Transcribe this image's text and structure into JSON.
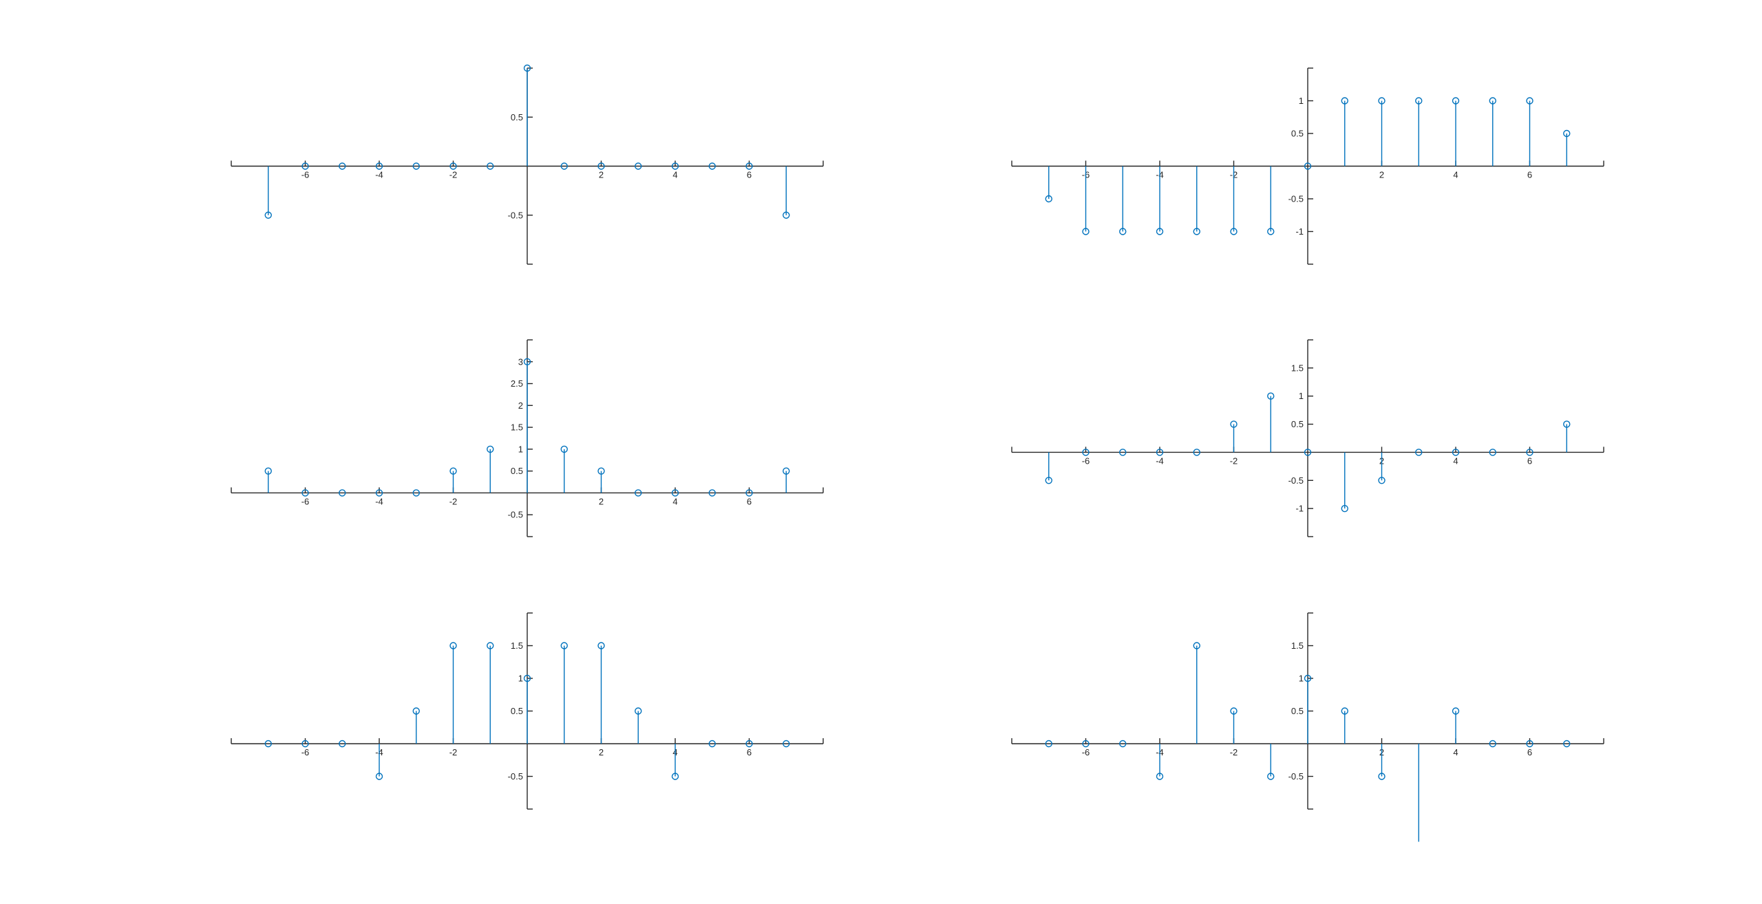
{
  "colors": {
    "stem": "#0072BD",
    "axis": "#262626",
    "background": "#ffffff"
  },
  "chart_data": [
    {
      "type": "stem",
      "position": "top-left",
      "x": [
        -7,
        -6,
        -5,
        -4,
        -3,
        -2,
        -1,
        0,
        1,
        2,
        3,
        4,
        5,
        6,
        7
      ],
      "values": [
        -0.5,
        0,
        0,
        0,
        0,
        0,
        0,
        1,
        0,
        0,
        0,
        0,
        0,
        0,
        -0.5
      ],
      "xlim": [
        -8,
        8
      ],
      "ylim": [
        -1,
        1
      ],
      "xticks": [
        -6,
        -4,
        -2,
        2,
        4,
        6
      ],
      "xtick_labels": [
        "-6",
        "-4",
        "-2",
        "2",
        "4",
        "6"
      ],
      "yticks": [
        -0.5,
        0.5
      ],
      "ytick_labels": [
        "-0.5",
        "0.5"
      ],
      "axis_location": "origin"
    },
    {
      "type": "stem",
      "position": "top-right",
      "x": [
        -7,
        -6,
        -5,
        -4,
        -3,
        -2,
        -1,
        0,
        1,
        2,
        3,
        4,
        5,
        6,
        7
      ],
      "values": [
        -0.5,
        -1,
        -1,
        -1,
        -1,
        -1,
        -1,
        0,
        1,
        1,
        1,
        1,
        1,
        1,
        0.5
      ],
      "xlim": [
        -8,
        8
      ],
      "ylim": [
        -1.5,
        1.5
      ],
      "xticks": [
        -6,
        -4,
        -2,
        2,
        4,
        6
      ],
      "xtick_labels": [
        "-6",
        "-4",
        "-2",
        "2",
        "4",
        "6"
      ],
      "yticks": [
        -1,
        -0.5,
        0.5,
        1
      ],
      "ytick_labels": [
        "-1",
        "-0.5",
        "0.5",
        "1"
      ],
      "axis_location": "origin"
    },
    {
      "type": "stem",
      "position": "middle-left",
      "x": [
        -7,
        -6,
        -5,
        -4,
        -3,
        -2,
        -1,
        0,
        1,
        2,
        3,
        4,
        5,
        6,
        7
      ],
      "values": [
        0.5,
        0,
        0,
        0,
        0,
        0.5,
        1,
        3,
        1,
        0.5,
        0,
        0,
        0,
        0,
        0.5
      ],
      "xlim": [
        -8,
        8
      ],
      "ylim": [
        -1,
        3.5
      ],
      "xticks": [
        -6,
        -4,
        -2,
        2,
        4,
        6
      ],
      "xtick_labels": [
        "-6",
        "-4",
        "-2",
        "2",
        "4",
        "6"
      ],
      "yticks": [
        -0.5,
        0.5,
        1,
        1.5,
        2,
        2.5,
        3
      ],
      "ytick_labels": [
        "-0.5",
        "0.5",
        "1",
        "1.5",
        "2",
        "2.5",
        "3"
      ],
      "axis_location": "origin"
    },
    {
      "type": "stem",
      "position": "middle-right",
      "x": [
        -7,
        -6,
        -5,
        -4,
        -3,
        -2,
        -1,
        0,
        1,
        2,
        3,
        4,
        5,
        6,
        7
      ],
      "values": [
        -0.5,
        0,
        0,
        0,
        0,
        0.5,
        1,
        0,
        -1,
        -0.5,
        0,
        0,
        0,
        0,
        0.5
      ],
      "xlim": [
        -8,
        8
      ],
      "ylim": [
        -1.5,
        2
      ],
      "xticks": [
        -6,
        -4,
        -2,
        2,
        4,
        6
      ],
      "xtick_labels": [
        "-6",
        "-4",
        "-2",
        "2",
        "4",
        "6"
      ],
      "yticks": [
        -1,
        -0.5,
        0.5,
        1,
        1.5
      ],
      "ytick_labels": [
        "-1",
        "-0.5",
        "0.5",
        "1",
        "1.5"
      ],
      "axis_location": "origin"
    },
    {
      "type": "stem",
      "position": "bottom-left",
      "x": [
        -7,
        -6,
        -5,
        -4,
        -3,
        -2,
        -1,
        0,
        1,
        2,
        3,
        4,
        5,
        6,
        7
      ],
      "values": [
        0,
        0,
        0,
        -0.5,
        0.5,
        1.5,
        1.5,
        1,
        1.5,
        1.5,
        0.5,
        -0.5,
        0,
        0,
        0
      ],
      "xlim": [
        -8,
        8
      ],
      "ylim": [
        -1,
        2
      ],
      "xticks": [
        -6,
        -4,
        -2,
        2,
        4,
        6
      ],
      "xtick_labels": [
        "-6",
        "-4",
        "-2",
        "2",
        "4",
        "6"
      ],
      "yticks": [
        -0.5,
        0.5,
        1,
        1.5
      ],
      "ytick_labels": [
        "-0.5",
        "0.5",
        "1",
        "1.5"
      ],
      "axis_location": "origin"
    },
    {
      "type": "stem",
      "position": "bottom-right",
      "x": [
        -7,
        -6,
        -5,
        -4,
        -3,
        -2,
        -1,
        0,
        1,
        2,
        3,
        4,
        5,
        6,
        7
      ],
      "values": [
        0,
        0,
        0,
        -0.5,
        1.5,
        0.5,
        -0.5,
        1,
        0.5,
        -0.5,
        -1.5,
        0.5,
        0,
        0,
        0
      ],
      "xlim": [
        -8,
        8
      ],
      "ylim": [
        -1,
        2
      ],
      "xticks": [
        -6,
        -4,
        -2,
        2,
        4,
        6
      ],
      "xtick_labels": [
        "-6",
        "-4",
        "-2",
        "2",
        "4",
        "6"
      ],
      "yticks": [
        -0.5,
        0.5,
        1,
        1.5
      ],
      "ytick_labels": [
        "-0.5",
        "0.5",
        "1",
        "1.5"
      ],
      "axis_location": "origin"
    }
  ]
}
